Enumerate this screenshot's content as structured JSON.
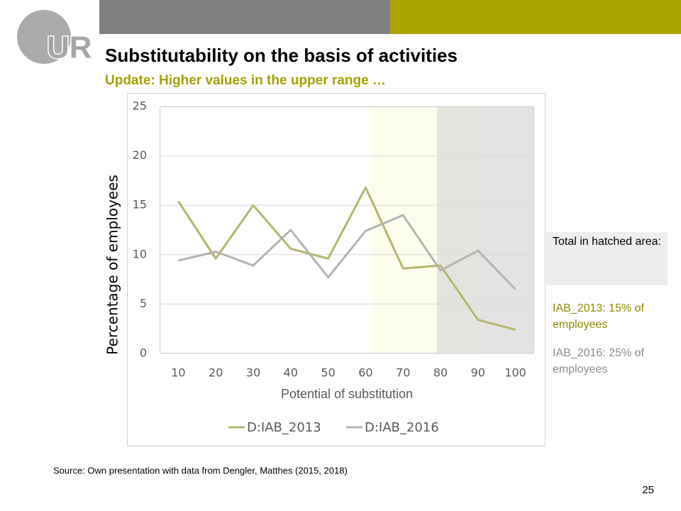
{
  "header": {
    "logo": "UR",
    "title": "Substitutability on the basis of activities",
    "subtitle": "Update: Higher values in the upper range …"
  },
  "chart_data": {
    "type": "line",
    "categories": [
      10,
      20,
      30,
      40,
      50,
      60,
      70,
      80,
      90,
      100
    ],
    "series": [
      {
        "name": "D:IAB_2013",
        "color": "#b5b56c",
        "values": [
          15.4,
          9.6,
          15,
          10.6,
          9.6,
          16.8,
          8.6,
          8.9,
          3.4,
          2.4
        ]
      },
      {
        "name": "D:IAB_2016",
        "color": "#b3b3b3",
        "values": [
          9.4,
          10.3,
          8.9,
          12.5,
          7.7,
          12.4,
          14,
          8.4,
          10.4,
          6.5
        ]
      }
    ],
    "ylim": [
      0,
      25
    ],
    "yticks": [
      0,
      5,
      10,
      15,
      20,
      25
    ],
    "grid": true,
    "x_label": "Potential of substitution",
    "y_label": "Percentage of employees",
    "legend": "bottom"
  },
  "sidebar": {
    "box": "Total in hatched area:",
    "note_2013": "IAB_2013: 15% of employees",
    "note_2016": "IAB_2016: 25% of employees"
  },
  "footer": {
    "source": "Source: Own presentation with data from Dengler, Matthes (2015,  2018)",
    "page": "25"
  }
}
